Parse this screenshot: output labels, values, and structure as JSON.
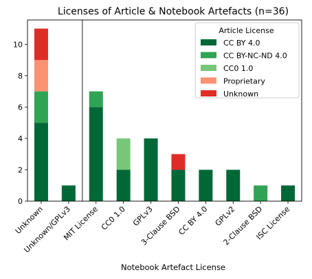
{
  "chart_data": {
    "type": "bar",
    "stacked": true,
    "title": "Licenses of Article & Notebook Artefacts (n=36)",
    "xlabel": "Notebook Artefact License",
    "ylabel": "",
    "ylim": [
      0,
      11.55
    ],
    "yticks": [
      0,
      2,
      4,
      6,
      8,
      10
    ],
    "categories": [
      "Unknown",
      "Unknown/GPLv3",
      "MIT License",
      "CC0 1.0",
      "GPLv3",
      "3-Clause BSD",
      "CC BY 4.0",
      "GPLv2",
      "2-Clause BSD",
      "ISC License"
    ],
    "separator_after_index": 1,
    "legend": {
      "title": "Article License",
      "position": "top-right"
    },
    "series": [
      {
        "name": "CC BY 4.0",
        "color": "#006837",
        "values": [
          5,
          1,
          6,
          2,
          4,
          2,
          2,
          2,
          0,
          1
        ]
      },
      {
        "name": "CC BY-NC-ND 4.0",
        "color": "#31a354",
        "values": [
          2,
          0,
          1,
          0,
          0,
          0,
          0,
          0,
          1,
          0
        ]
      },
      {
        "name": "CC0 1.0",
        "color": "#78c679",
        "values": [
          0,
          0,
          0,
          2,
          0,
          0,
          0,
          0,
          0,
          0
        ]
      },
      {
        "name": "Proprietary",
        "color": "#fc9272",
        "values": [
          2,
          0,
          0,
          0,
          0,
          0,
          0,
          0,
          0,
          0
        ]
      },
      {
        "name": "Unknown",
        "color": "#de2d26",
        "values": [
          2,
          0,
          0,
          0,
          0,
          1,
          0,
          0,
          0,
          0
        ]
      }
    ]
  }
}
